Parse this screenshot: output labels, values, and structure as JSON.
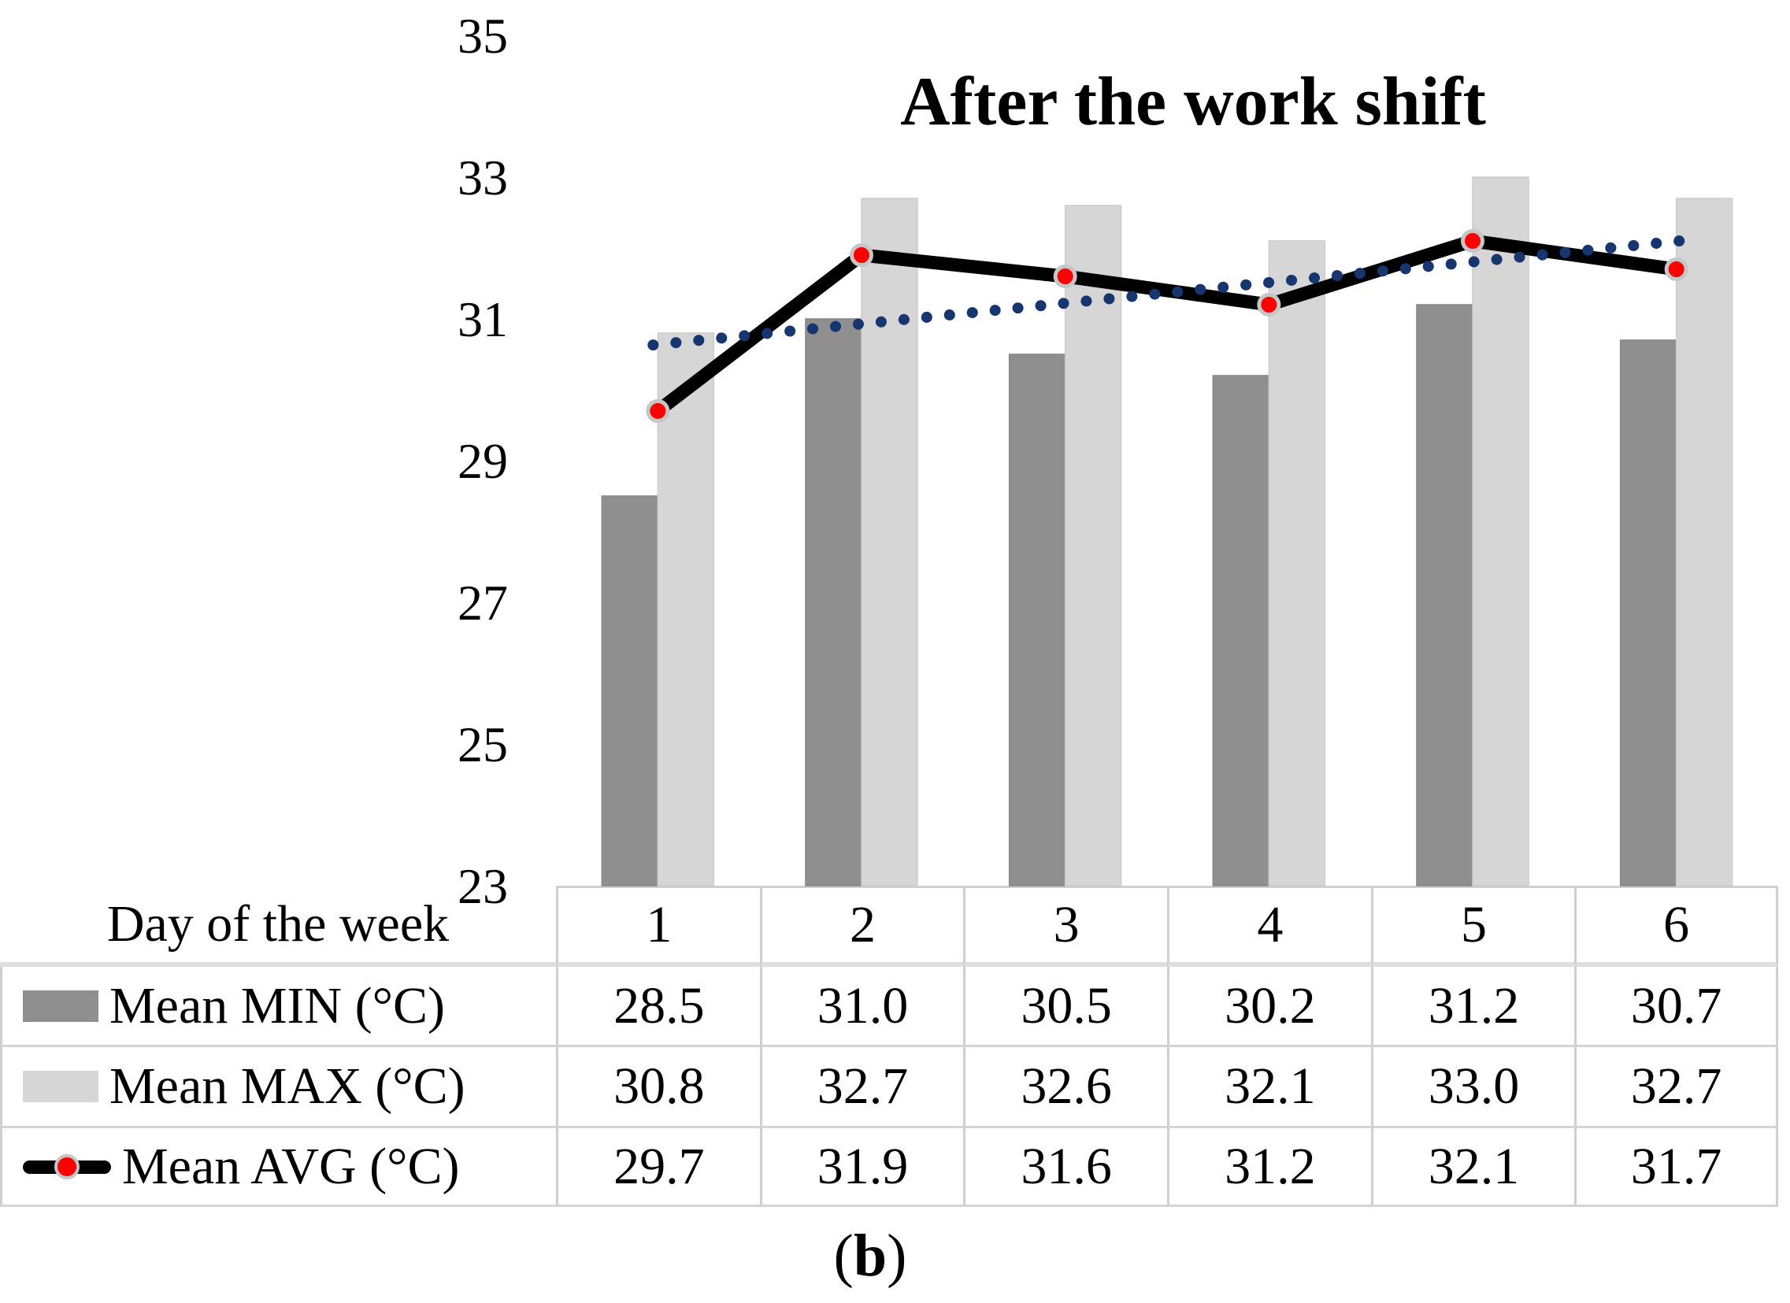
{
  "chart_data": {
    "type": "bar",
    "subtype": "grouped-bars-with-line-and-trendline",
    "title": "After the work shift",
    "categories": [
      1,
      2,
      3,
      4,
      5,
      6
    ],
    "x_axis_label": "Day of the week",
    "y_ticks": [
      35,
      33,
      31,
      29,
      27,
      25,
      23
    ],
    "ylim": [
      23,
      35
    ],
    "grid": false,
    "legend_position": "attached-data-table-left",
    "series": [
      {
        "name": "Mean MIN (°C)",
        "type": "bar",
        "color": "#8f8f8f",
        "values": [
          28.5,
          31.0,
          30.5,
          30.2,
          31.2,
          30.7
        ]
      },
      {
        "name": "Mean MAX (°C)",
        "type": "bar",
        "color": "#d6d6d6",
        "values": [
          30.8,
          32.7,
          32.6,
          32.1,
          33.0,
          32.7
        ]
      },
      {
        "name": "Mean AVG (°C)",
        "type": "line",
        "color": "#000000",
        "marker": "circle",
        "marker_color": "#fe0000",
        "marker_ring_color": "#c6c6c6",
        "values": [
          29.7,
          31.9,
          31.6,
          31.2,
          32.1,
          31.7
        ]
      }
    ],
    "trendline": {
      "of_series": "Mean AVG (°C)",
      "style": "dotted",
      "color": "#17356e",
      "fit": "linear"
    }
  },
  "table": {
    "header_label": "Day of the week",
    "columns": [
      "1",
      "2",
      "3",
      "4",
      "5",
      "6"
    ],
    "row_labels": [
      "Mean MIN (°C)",
      "Mean MAX (°C)",
      "Mean AVG (°C)"
    ],
    "rows": [
      [
        "28.5",
        "31.0",
        "30.5",
        "30.2",
        "31.2",
        "30.7"
      ],
      [
        "30.8",
        "32.7",
        "32.6",
        "32.1",
        "33.0",
        "32.7"
      ],
      [
        "29.7",
        "31.9",
        "31.6",
        "31.2",
        "32.1",
        "31.7"
      ]
    ]
  },
  "caption": {
    "prefix": "(",
    "letter": "b",
    "suffix": ")"
  },
  "colors": {
    "min_bar": "#8f8f8f",
    "max_bar": "#d6d6d6",
    "avg_line": "#000000",
    "marker_fill": "#fe0000",
    "marker_ring": "#c6c6c6",
    "trend_dots": "#17356e",
    "table_border": "#cfcfcf"
  }
}
